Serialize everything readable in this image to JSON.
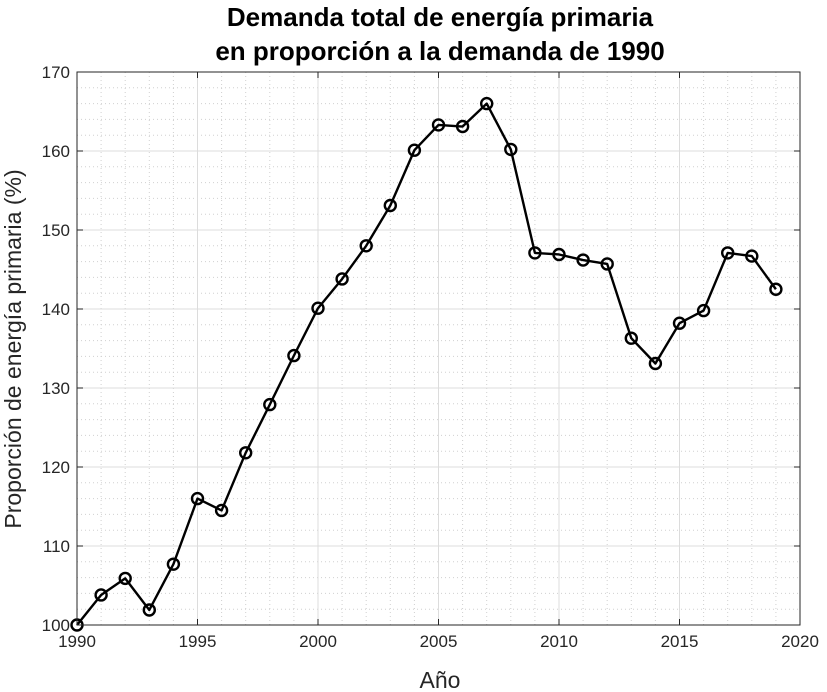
{
  "chart_data": {
    "type": "line",
    "title_lines": [
      "Demanda total de energía primaria",
      "en proporción a la demanda de 1990"
    ],
    "xlabel": "Año",
    "ylabel": "Proporción de energía primaria (%)",
    "xlim": [
      1990,
      2020
    ],
    "ylim": [
      100,
      170
    ],
    "xticks": [
      1990,
      1995,
      2000,
      2005,
      2010,
      2015,
      2020
    ],
    "yticks": [
      100,
      110,
      120,
      130,
      140,
      150,
      160,
      170
    ],
    "grid": true,
    "minor_grid": true,
    "marker": "circle",
    "line_color": "#000000",
    "x": [
      1990,
      1991,
      1992,
      1993,
      1994,
      1995,
      1996,
      1997,
      1998,
      1999,
      2000,
      2001,
      2002,
      2003,
      2004,
      2005,
      2006,
      2007,
      2008,
      2009,
      2010,
      2011,
      2012,
      2013,
      2014,
      2015,
      2016,
      2017,
      2018,
      2019
    ],
    "y": [
      100.0,
      103.8,
      105.9,
      101.9,
      107.7,
      116.0,
      114.5,
      121.8,
      127.9,
      134.1,
      140.1,
      143.8,
      148.0,
      153.1,
      160.1,
      163.3,
      163.1,
      166.0,
      160.2,
      147.1,
      146.9,
      146.2,
      145.7,
      136.3,
      133.1,
      138.2,
      139.8,
      147.1,
      146.7,
      142.5
    ]
  }
}
